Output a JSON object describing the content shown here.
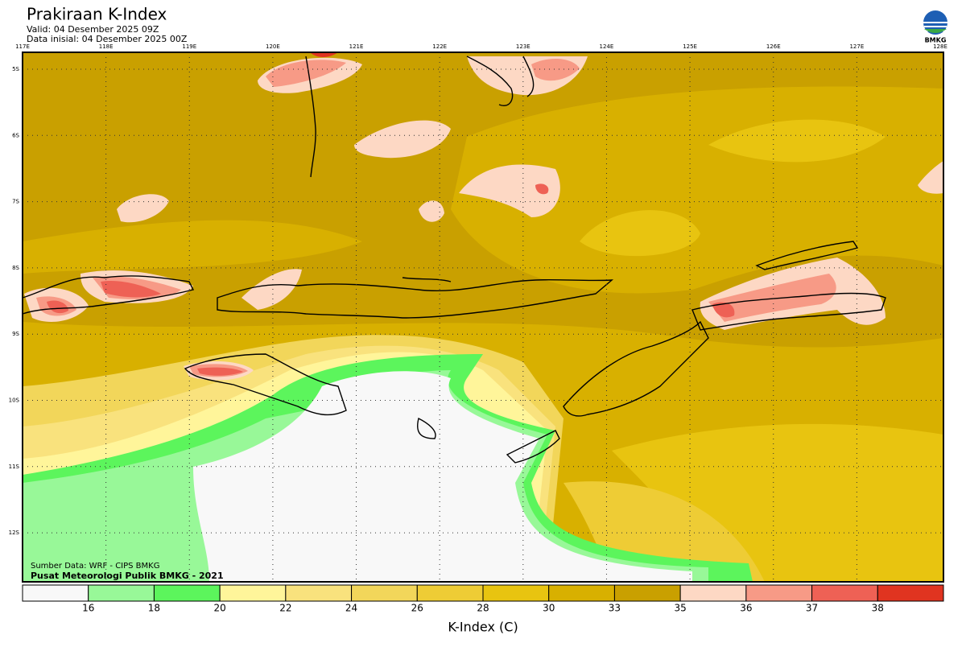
{
  "header": {
    "title": "Prakiraan K-Index",
    "valid": "Valid: 04 Desember 2025 09Z",
    "init": "Data inisial: 04 Desember 2025 00Z",
    "logo": "BMKG"
  },
  "map": {
    "lon_labels": [
      "117E",
      "118E",
      "119E",
      "120E",
      "121E",
      "122E",
      "123E",
      "124E",
      "125E",
      "126E",
      "127E",
      "128E"
    ],
    "lat_labels": [
      "5S",
      "6S",
      "7S",
      "8S",
      "9S",
      "10S",
      "11S",
      "12S"
    ],
    "source": "Sumber Data: WRF - CIPS BMKG",
    "credit": "Pusat Meteorologi Publik BMKG - 2021"
  },
  "colorbar": {
    "title": "K-Index (C)",
    "ticks": [
      16,
      18,
      20,
      22,
      24,
      26,
      28,
      30,
      33,
      35,
      36,
      37,
      38
    ],
    "colors": [
      "#f8f8f8",
      "#98f898",
      "#5cf55c",
      "#fff59a",
      "#f9e27d",
      "#f2d65a",
      "#eecc35",
      "#e8c410",
      "#d8b000",
      "#c9a000",
      "#fdd8c4",
      "#f79a86",
      "#ee6155",
      "#e03420"
    ]
  }
}
